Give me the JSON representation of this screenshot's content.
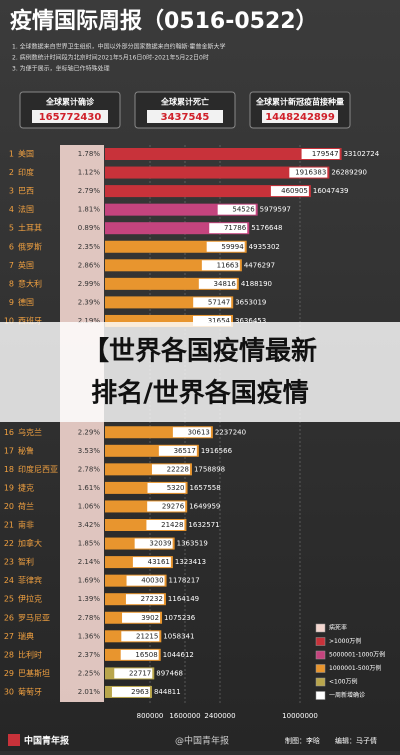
{
  "header": {
    "title": "疫情国际周报（0516-0522）",
    "notes": [
      "1. 全球数据来自世界卫生组织，中国以外部分国家数据来自约翰斯·霍普金斯大学",
      "2. 病例数统计时间段为北京时间2021年5月16日0时-2021年5月22日0时",
      "3. 为便于展示，坐标轴已作特殊处理"
    ]
  },
  "summary": [
    {
      "label": "全球累计确诊",
      "value": "165772430"
    },
    {
      "label": "全球累计死亡",
      "value": "3437545"
    },
    {
      "label": "全球累计新冠疫苗接种量",
      "value": "1448242899"
    }
  ],
  "chart_data": {
    "type": "bar",
    "orientation": "horizontal",
    "ranks": [
      1,
      2,
      3,
      4,
      5,
      6,
      7,
      8,
      9,
      10,
      16,
      17,
      18,
      19,
      20,
      21,
      22,
      23,
      24,
      25,
      26,
      27,
      28,
      29,
      30
    ],
    "categories": [
      "美国",
      "印度",
      "巴西",
      "法国",
      "土耳其",
      "俄罗斯",
      "英国",
      "意大利",
      "德国",
      "西班牙",
      "乌克兰",
      "秘鲁",
      "印度尼西亚",
      "捷克",
      "荷兰",
      "南非",
      "加拿大",
      "智利",
      "菲律宾",
      "伊拉克",
      "罗马尼亚",
      "瑞典",
      "比利时",
      "巴基斯坦",
      "葡萄牙"
    ],
    "death_rates": [
      "1.78%",
      "1.12%",
      "2.79%",
      "1.81%",
      "0.89%",
      "2.35%",
      "2.86%",
      "2.99%",
      "2.39%",
      "2.19%",
      "2.29%",
      "3.53%",
      "2.78%",
      "1.61%",
      "1.06%",
      "3.42%",
      "1.85%",
      "2.14%",
      "1.69%",
      "1.39%",
      "2.78%",
      "1.36%",
      "2.37%",
      "2.25%",
      "2.01%"
    ],
    "weekly_new": [
      179547,
      1916383,
      460905,
      54526,
      71786,
      59994,
      11663,
      34816,
      57147,
      31654,
      30613,
      36517,
      22228,
      5320,
      29276,
      21428,
      32039,
      43161,
      40030,
      27232,
      3902,
      21215,
      16508,
      22717,
      2963
    ],
    "values": [
      33102724,
      26289290,
      16047439,
      5979597,
      5176648,
      4935302,
      4476297,
      4188190,
      3653019,
      3636453,
      2237240,
      1916566,
      1758898,
      1657558,
      1649959,
      1632571,
      1363519,
      1323413,
      1178217,
      1164149,
      1075236,
      1058341,
      1044612,
      897468,
      844811
    ],
    "colors": [
      "#c8323a",
      "#c8323a",
      "#c8323a",
      "#c4447e",
      "#c4447e",
      "#e8952e",
      "#e8952e",
      "#e8952e",
      "#e8952e",
      "#e8952e",
      "#e8952e",
      "#e8952e",
      "#e8952e",
      "#e8952e",
      "#e8952e",
      "#e8952e",
      "#e8952e",
      "#e8952e",
      "#e8952e",
      "#e8952e",
      "#e8952e",
      "#e8952e",
      "#e8952e",
      "#b9a64c",
      "#b9a64c"
    ],
    "xlim": [
      0,
      35000000
    ],
    "xticks": [
      800000,
      1600000,
      2400000,
      10000000
    ],
    "legend": [
      {
        "name": "病死率",
        "color": "#f3d6cf"
      },
      {
        "name": ">1000万例",
        "color": "#c8323a"
      },
      {
        "name": "5000001-1000万例",
        "color": "#c4447e"
      },
      {
        "name": "1000001-500万例",
        "color": "#e8952e"
      },
      {
        "name": "<100万例",
        "color": "#b9a64c"
      },
      {
        "name": "一周新增确诊",
        "color": "#ffffff"
      }
    ]
  },
  "overlay": {
    "lines": [
      "【世界各国疫情最新",
      "排名/世界各国疫情"
    ]
  },
  "footer": {
    "logo": "中国青年报",
    "watermark": "@中国青年报",
    "credit1": "制图：李晗",
    "credit2": "编辑：马子倩"
  }
}
